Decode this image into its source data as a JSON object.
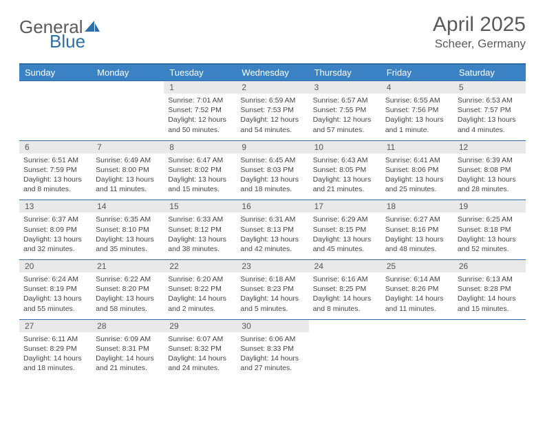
{
  "brand": {
    "name_part1": "General",
    "name_part2": "Blue",
    "icon_color": "#2f6fa8",
    "text_color_gray": "#6b6b6b",
    "text_color_blue": "#2f6fa8"
  },
  "title": {
    "month_year": "April 2025",
    "location": "Scheer, Germany",
    "title_fontsize": 30,
    "location_fontsize": 17,
    "color": "#5a5a5a"
  },
  "calendar": {
    "header_bg": "#3a82c4",
    "header_text_color": "#ffffff",
    "row_divider_color": "#2e6aa3",
    "daynum_bg": "#e9e9e9",
    "daynum_color": "#555555",
    "body_text_color": "#444444",
    "body_fontsize": 10.5,
    "background_color": "#ffffff",
    "columns": 7,
    "day_headers": [
      "Sunday",
      "Monday",
      "Tuesday",
      "Wednesday",
      "Thursday",
      "Friday",
      "Saturday"
    ],
    "weeks": [
      [
        {
          "num": "",
          "lines": []
        },
        {
          "num": "",
          "lines": []
        },
        {
          "num": "1",
          "lines": [
            "Sunrise: 7:01 AM",
            "Sunset: 7:52 PM",
            "Daylight: 12 hours and 50 minutes."
          ]
        },
        {
          "num": "2",
          "lines": [
            "Sunrise: 6:59 AM",
            "Sunset: 7:53 PM",
            "Daylight: 12 hours and 54 minutes."
          ]
        },
        {
          "num": "3",
          "lines": [
            "Sunrise: 6:57 AM",
            "Sunset: 7:55 PM",
            "Daylight: 12 hours and 57 minutes."
          ]
        },
        {
          "num": "4",
          "lines": [
            "Sunrise: 6:55 AM",
            "Sunset: 7:56 PM",
            "Daylight: 13 hours and 1 minute."
          ]
        },
        {
          "num": "5",
          "lines": [
            "Sunrise: 6:53 AM",
            "Sunset: 7:57 PM",
            "Daylight: 13 hours and 4 minutes."
          ]
        }
      ],
      [
        {
          "num": "6",
          "lines": [
            "Sunrise: 6:51 AM",
            "Sunset: 7:59 PM",
            "Daylight: 13 hours and 8 minutes."
          ]
        },
        {
          "num": "7",
          "lines": [
            "Sunrise: 6:49 AM",
            "Sunset: 8:00 PM",
            "Daylight: 13 hours and 11 minutes."
          ]
        },
        {
          "num": "8",
          "lines": [
            "Sunrise: 6:47 AM",
            "Sunset: 8:02 PM",
            "Daylight: 13 hours and 15 minutes."
          ]
        },
        {
          "num": "9",
          "lines": [
            "Sunrise: 6:45 AM",
            "Sunset: 8:03 PM",
            "Daylight: 13 hours and 18 minutes."
          ]
        },
        {
          "num": "10",
          "lines": [
            "Sunrise: 6:43 AM",
            "Sunset: 8:05 PM",
            "Daylight: 13 hours and 21 minutes."
          ]
        },
        {
          "num": "11",
          "lines": [
            "Sunrise: 6:41 AM",
            "Sunset: 8:06 PM",
            "Daylight: 13 hours and 25 minutes."
          ]
        },
        {
          "num": "12",
          "lines": [
            "Sunrise: 6:39 AM",
            "Sunset: 8:08 PM",
            "Daylight: 13 hours and 28 minutes."
          ]
        }
      ],
      [
        {
          "num": "13",
          "lines": [
            "Sunrise: 6:37 AM",
            "Sunset: 8:09 PM",
            "Daylight: 13 hours and 32 minutes."
          ]
        },
        {
          "num": "14",
          "lines": [
            "Sunrise: 6:35 AM",
            "Sunset: 8:10 PM",
            "Daylight: 13 hours and 35 minutes."
          ]
        },
        {
          "num": "15",
          "lines": [
            "Sunrise: 6:33 AM",
            "Sunset: 8:12 PM",
            "Daylight: 13 hours and 38 minutes."
          ]
        },
        {
          "num": "16",
          "lines": [
            "Sunrise: 6:31 AM",
            "Sunset: 8:13 PM",
            "Daylight: 13 hours and 42 minutes."
          ]
        },
        {
          "num": "17",
          "lines": [
            "Sunrise: 6:29 AM",
            "Sunset: 8:15 PM",
            "Daylight: 13 hours and 45 minutes."
          ]
        },
        {
          "num": "18",
          "lines": [
            "Sunrise: 6:27 AM",
            "Sunset: 8:16 PM",
            "Daylight: 13 hours and 48 minutes."
          ]
        },
        {
          "num": "19",
          "lines": [
            "Sunrise: 6:25 AM",
            "Sunset: 8:18 PM",
            "Daylight: 13 hours and 52 minutes."
          ]
        }
      ],
      [
        {
          "num": "20",
          "lines": [
            "Sunrise: 6:24 AM",
            "Sunset: 8:19 PM",
            "Daylight: 13 hours and 55 minutes."
          ]
        },
        {
          "num": "21",
          "lines": [
            "Sunrise: 6:22 AM",
            "Sunset: 8:20 PM",
            "Daylight: 13 hours and 58 minutes."
          ]
        },
        {
          "num": "22",
          "lines": [
            "Sunrise: 6:20 AM",
            "Sunset: 8:22 PM",
            "Daylight: 14 hours and 2 minutes."
          ]
        },
        {
          "num": "23",
          "lines": [
            "Sunrise: 6:18 AM",
            "Sunset: 8:23 PM",
            "Daylight: 14 hours and 5 minutes."
          ]
        },
        {
          "num": "24",
          "lines": [
            "Sunrise: 6:16 AM",
            "Sunset: 8:25 PM",
            "Daylight: 14 hours and 8 minutes."
          ]
        },
        {
          "num": "25",
          "lines": [
            "Sunrise: 6:14 AM",
            "Sunset: 8:26 PM",
            "Daylight: 14 hours and 11 minutes."
          ]
        },
        {
          "num": "26",
          "lines": [
            "Sunrise: 6:13 AM",
            "Sunset: 8:28 PM",
            "Daylight: 14 hours and 15 minutes."
          ]
        }
      ],
      [
        {
          "num": "27",
          "lines": [
            "Sunrise: 6:11 AM",
            "Sunset: 8:29 PM",
            "Daylight: 14 hours and 18 minutes."
          ]
        },
        {
          "num": "28",
          "lines": [
            "Sunrise: 6:09 AM",
            "Sunset: 8:31 PM",
            "Daylight: 14 hours and 21 minutes."
          ]
        },
        {
          "num": "29",
          "lines": [
            "Sunrise: 6:07 AM",
            "Sunset: 8:32 PM",
            "Daylight: 14 hours and 24 minutes."
          ]
        },
        {
          "num": "30",
          "lines": [
            "Sunrise: 6:06 AM",
            "Sunset: 8:33 PM",
            "Daylight: 14 hours and 27 minutes."
          ]
        },
        {
          "num": "",
          "lines": []
        },
        {
          "num": "",
          "lines": []
        },
        {
          "num": "",
          "lines": []
        }
      ]
    ]
  }
}
